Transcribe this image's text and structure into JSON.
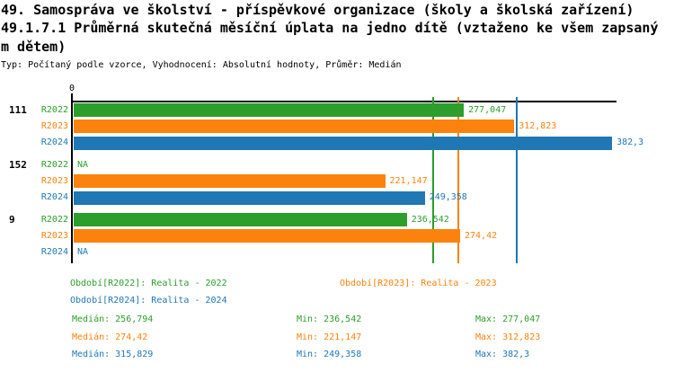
{
  "title": {
    "line1": "49. Samospráva ve školství - příspěvkové organizace (školy a školská zařízení)",
    "line2": "49.1.7.1 Průměrná skutečná měsíční úplata na jedno dítě (vztaženo ke všem zapsaný",
    "line3": "m dětem)",
    "subtitle": "Typ: Počítaný podle vzorce, Vyhodnocení: Absolutní hodnoty, Průměr: Medián"
  },
  "colors": {
    "r2022": "#2b9e2b",
    "r2023": "#fb830d",
    "r2024": "#1f77b4",
    "axis": "#000000",
    "background": "#ffffff"
  },
  "chart_data": {
    "type": "bar",
    "orientation": "horizontal",
    "grid": false,
    "x_axis": {
      "origin_label": "0",
      "min": 0,
      "max": 385
    },
    "groups": [
      {
        "label": "111",
        "bars": [
          {
            "series": "R2022",
            "value": 277.047,
            "value_label": "277,047"
          },
          {
            "series": "R2023",
            "value": 312.823,
            "value_label": "312,823"
          },
          {
            "series": "R2024",
            "value": 382.3,
            "value_label": "382,3"
          }
        ]
      },
      {
        "label": "152",
        "bars": [
          {
            "series": "R2022",
            "value": null,
            "value_label": "NA"
          },
          {
            "series": "R2023",
            "value": 221.147,
            "value_label": "221,147"
          },
          {
            "series": "R2024",
            "value": 249.358,
            "value_label": "249,358"
          }
        ]
      },
      {
        "label": "9",
        "bars": [
          {
            "series": "R2022",
            "value": 236.542,
            "value_label": "236,542"
          },
          {
            "series": "R2023",
            "value": 274.42,
            "value_label": "274,42"
          },
          {
            "series": "R2024",
            "value": null,
            "value_label": "NA"
          }
        ]
      }
    ],
    "median_lines": [
      {
        "series": "R2022",
        "value": 256.794
      },
      {
        "series": "R2023",
        "value": 274.42
      },
      {
        "series": "R2024",
        "value": 315.829
      }
    ],
    "legend": [
      {
        "series": "R2022",
        "label": "Období[R2022]: Realita - 2022"
      },
      {
        "series": "R2023",
        "label": "Období[R2023]: Realita - 2023"
      },
      {
        "series": "R2024",
        "label": "Období[R2024]: Realita - 2024"
      }
    ],
    "stats": [
      {
        "series": "R2022",
        "median": "Medián: 256,794",
        "min": "Min: 236,542",
        "max": "Max: 277,047"
      },
      {
        "series": "R2023",
        "median": "Medián: 274,42",
        "min": "Min: 221,147",
        "max": "Max: 312,823"
      },
      {
        "series": "R2024",
        "median": "Medián: 315,829",
        "min": "Min: 249,358",
        "max": "Max: 382,3"
      }
    ]
  }
}
